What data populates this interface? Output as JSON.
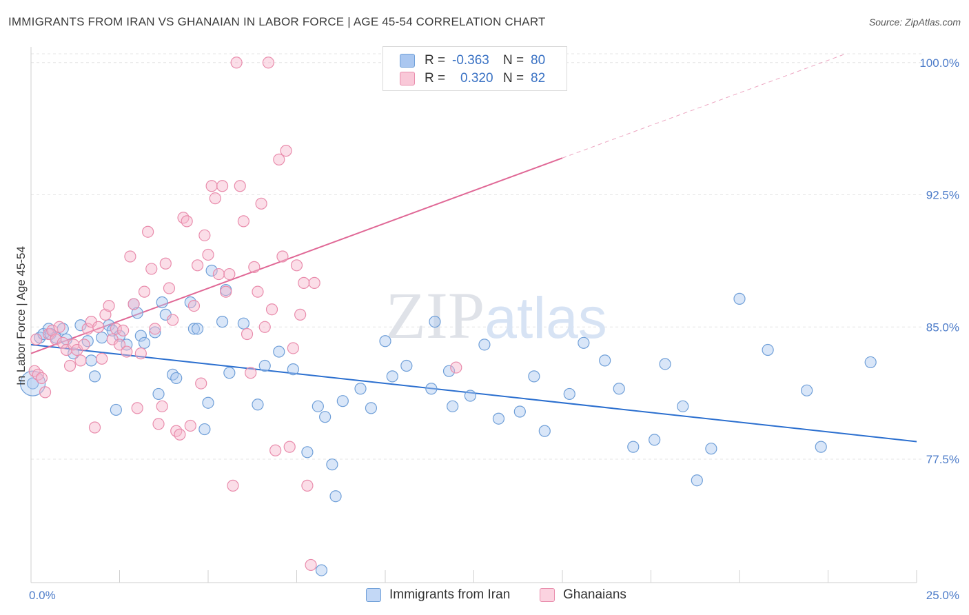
{
  "title": "IMMIGRANTS FROM IRAN VS GHANAIAN IN LABOR FORCE | AGE 45-54 CORRELATION CHART",
  "source": "Source: ZipAtlas.com",
  "watermark": "ZIPatlas",
  "colors": {
    "blue_fill": "#aac7f0",
    "blue_stroke": "#6f9fd8",
    "blue_line": "#2b6fcf",
    "pink_fill": "#f6b6cb",
    "pink_stroke": "#e98cac",
    "pink_line": "#e06896",
    "tick_text": "#4d7cc9",
    "grid": "#e4e4e4"
  },
  "legend": {
    "rows": [
      {
        "series": "Immigrants from Iran",
        "r_label": "R =",
        "r_value": "-0.363",
        "n_label": "N =",
        "n_value": "80"
      },
      {
        "series": "Ghanaians",
        "r_label": "R =",
        "r_value": "0.320",
        "n_label": "N =",
        "n_value": "82"
      }
    ]
  },
  "bottom_legend": [
    "Immigrants from Iran",
    "Ghanaians"
  ],
  "chart_data": {
    "type": "scatter",
    "title": "IMMIGRANTS FROM IRAN VS GHANAIAN IN LABOR FORCE | AGE 45-54 CORRELATION CHART",
    "xlabel": "",
    "ylabel": "In Labor Force | Age 45-54",
    "xlim": [
      0,
      25
    ],
    "ylim": [
      70.5,
      100.5
    ],
    "x_tick_labels": [
      "0.0%",
      "25.0%"
    ],
    "y_ticks": [
      77.5,
      85.0,
      92.5,
      100.0
    ],
    "y_tick_labels": [
      "77.5%",
      "85.0%",
      "92.5%",
      "100.0%"
    ],
    "grid": true,
    "legend_position": "top-center",
    "series": [
      {
        "name": "Immigrants from Iran",
        "r": -0.363,
        "n": 80,
        "trend": {
          "x": [
            0,
            25
          ],
          "y": [
            84.0,
            78.5
          ],
          "solid_to": 25
        },
        "points": [
          [
            0.05,
            81.8
          ],
          [
            0.25,
            84.4
          ],
          [
            0.35,
            84.6
          ],
          [
            0.5,
            84.9
          ],
          [
            0.55,
            84.6
          ],
          [
            0.7,
            84.4
          ],
          [
            0.9,
            84.9
          ],
          [
            1.0,
            84.3
          ],
          [
            1.2,
            83.5
          ],
          [
            1.4,
            85.1
          ],
          [
            1.6,
            84.2
          ],
          [
            1.7,
            83.1
          ],
          [
            1.8,
            82.2
          ],
          [
            2.0,
            84.4
          ],
          [
            2.2,
            85.1
          ],
          [
            2.3,
            84.8
          ],
          [
            2.4,
            80.3
          ],
          [
            2.5,
            84.5
          ],
          [
            2.7,
            84.0
          ],
          [
            2.9,
            86.3
          ],
          [
            3.0,
            85.8
          ],
          [
            3.1,
            84.5
          ],
          [
            3.2,
            84.1
          ],
          [
            3.5,
            84.7
          ],
          [
            3.6,
            81.2
          ],
          [
            3.7,
            86.4
          ],
          [
            3.8,
            85.7
          ],
          [
            4.0,
            82.3
          ],
          [
            4.1,
            82.1
          ],
          [
            4.5,
            86.4
          ],
          [
            4.6,
            84.9
          ],
          [
            4.7,
            84.9
          ],
          [
            4.9,
            79.2
          ],
          [
            5.0,
            80.7
          ],
          [
            5.1,
            88.2
          ],
          [
            5.4,
            85.3
          ],
          [
            5.5,
            87.1
          ],
          [
            5.6,
            82.4
          ],
          [
            6.0,
            85.2
          ],
          [
            6.4,
            80.6
          ],
          [
            6.6,
            82.8
          ],
          [
            7.0,
            83.6
          ],
          [
            7.4,
            82.6
          ],
          [
            7.8,
            77.9
          ],
          [
            8.1,
            80.5
          ],
          [
            8.2,
            71.2
          ],
          [
            8.3,
            79.9
          ],
          [
            8.5,
            77.2
          ],
          [
            8.6,
            75.4
          ],
          [
            8.8,
            80.8
          ],
          [
            9.3,
            81.5
          ],
          [
            9.6,
            80.4
          ],
          [
            10.0,
            84.2
          ],
          [
            10.2,
            82.2
          ],
          [
            10.6,
            82.8
          ],
          [
            11.3,
            81.5
          ],
          [
            11.4,
            85.3
          ],
          [
            11.8,
            82.5
          ],
          [
            11.9,
            80.5
          ],
          [
            12.4,
            81.1
          ],
          [
            12.8,
            84.0
          ],
          [
            13.2,
            79.8
          ],
          [
            13.8,
            80.2
          ],
          [
            14.2,
            82.2
          ],
          [
            14.5,
            79.1
          ],
          [
            15.2,
            81.2
          ],
          [
            15.6,
            84.1
          ],
          [
            16.2,
            83.1
          ],
          [
            16.6,
            81.5
          ],
          [
            17.0,
            78.2
          ],
          [
            17.6,
            78.6
          ],
          [
            17.9,
            82.9
          ],
          [
            18.4,
            80.5
          ],
          [
            18.8,
            76.3
          ],
          [
            19.2,
            78.1
          ],
          [
            20.0,
            86.6
          ],
          [
            20.8,
            83.7
          ],
          [
            21.9,
            81.4
          ],
          [
            22.3,
            78.2
          ],
          [
            23.7,
            83.0
          ]
        ]
      },
      {
        "name": "Ghanaians",
        "r": 0.32,
        "n": 82,
        "trend": {
          "x": [
            0,
            23
          ],
          "y": [
            83.5,
            100.5
          ],
          "solid_to": 15
        },
        "points": [
          [
            0.1,
            82.5
          ],
          [
            0.15,
            84.3
          ],
          [
            0.2,
            82.3
          ],
          [
            0.3,
            82.1
          ],
          [
            0.4,
            81.3
          ],
          [
            0.5,
            84.6
          ],
          [
            0.6,
            84.8
          ],
          [
            0.7,
            84.3
          ],
          [
            0.8,
            85.0
          ],
          [
            0.9,
            84.1
          ],
          [
            1.0,
            83.7
          ],
          [
            1.1,
            82.8
          ],
          [
            1.2,
            84.0
          ],
          [
            1.3,
            83.7
          ],
          [
            1.4,
            83.1
          ],
          [
            1.5,
            84.0
          ],
          [
            1.6,
            84.9
          ],
          [
            1.7,
            85.3
          ],
          [
            1.8,
            79.3
          ],
          [
            1.9,
            85.0
          ],
          [
            2.0,
            83.2
          ],
          [
            2.1,
            85.7
          ],
          [
            2.2,
            86.2
          ],
          [
            2.3,
            84.3
          ],
          [
            2.4,
            84.9
          ],
          [
            2.5,
            84.0
          ],
          [
            2.6,
            84.8
          ],
          [
            2.7,
            83.6
          ],
          [
            2.8,
            89.0
          ],
          [
            2.9,
            86.3
          ],
          [
            3.0,
            80.4
          ],
          [
            3.1,
            83.5
          ],
          [
            3.2,
            87.0
          ],
          [
            3.3,
            90.4
          ],
          [
            3.4,
            88.3
          ],
          [
            3.5,
            84.9
          ],
          [
            3.6,
            79.5
          ],
          [
            3.7,
            80.5
          ],
          [
            3.8,
            88.6
          ],
          [
            3.9,
            87.2
          ],
          [
            4.0,
            85.4
          ],
          [
            4.1,
            79.1
          ],
          [
            4.2,
            78.9
          ],
          [
            4.3,
            91.2
          ],
          [
            4.4,
            91.0
          ],
          [
            4.5,
            79.4
          ],
          [
            4.6,
            86.2
          ],
          [
            4.7,
            88.5
          ],
          [
            4.8,
            81.8
          ],
          [
            4.9,
            90.2
          ],
          [
            5.0,
            89.1
          ],
          [
            5.1,
            93.0
          ],
          [
            5.2,
            92.3
          ],
          [
            5.3,
            88.0
          ],
          [
            5.4,
            93.0
          ],
          [
            5.5,
            87.0
          ],
          [
            5.6,
            88.0
          ],
          [
            5.7,
            76.0
          ],
          [
            5.8,
            100.0
          ],
          [
            5.9,
            93.0
          ],
          [
            6.0,
            91.0
          ],
          [
            6.1,
            84.6
          ],
          [
            6.2,
            82.4
          ],
          [
            6.3,
            88.4
          ],
          [
            6.4,
            87.0
          ],
          [
            6.5,
            92.0
          ],
          [
            6.6,
            85.0
          ],
          [
            6.7,
            100.0
          ],
          [
            6.8,
            86.0
          ],
          [
            6.9,
            78.0
          ],
          [
            7.0,
            94.5
          ],
          [
            7.1,
            89.0
          ],
          [
            7.2,
            95.0
          ],
          [
            7.3,
            78.2
          ],
          [
            7.4,
            83.8
          ],
          [
            7.5,
            88.5
          ],
          [
            7.6,
            85.7
          ],
          [
            7.7,
            87.5
          ],
          [
            7.8,
            76.0
          ],
          [
            7.9,
            71.5
          ],
          [
            8.0,
            87.5
          ],
          [
            12.0,
            82.7
          ]
        ]
      }
    ]
  }
}
